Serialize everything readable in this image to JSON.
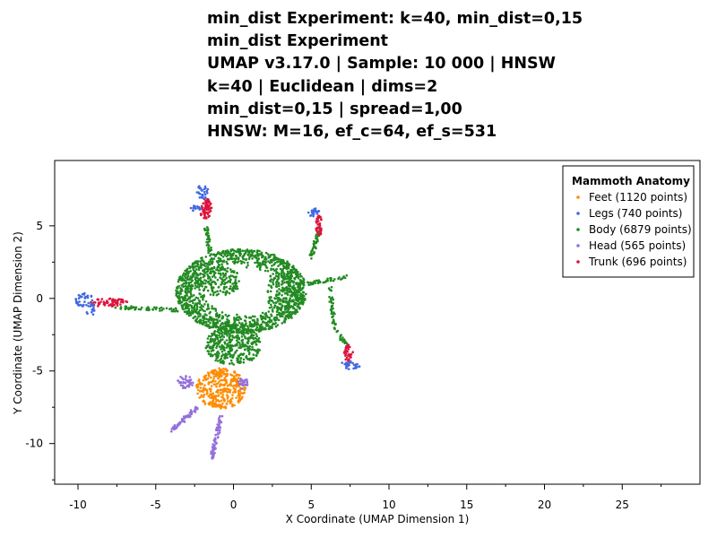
{
  "chart_data": {
    "type": "scatter",
    "title_lines": [
      "min_dist Experiment: k=40, min_dist=0,15",
      "min_dist Experiment",
      "UMAP v3.17.0 | Sample: 10 000 | HNSW",
      "k=40 | Euclidean | dims=2",
      "min_dist=0,15 | spread=1,00",
      "HNSW: M=16, ef_c=64, ef_s=531"
    ],
    "xlabel": "X Coordinate (UMAP Dimension 1)",
    "ylabel": "Y Coordinate (UMAP Dimension 2)",
    "xlim": [
      -11.5,
      30
    ],
    "ylim": [
      -12.8,
      9.5
    ],
    "xticks": [
      {
        "value": -10,
        "label": "-10"
      },
      {
        "value": -5,
        "label": "-5"
      },
      {
        "value": 0,
        "label": "0"
      },
      {
        "value": 5,
        "label": "5"
      },
      {
        "value": 10,
        "label": "10"
      },
      {
        "value": 15,
        "label": "15"
      },
      {
        "value": 20,
        "label": "20"
      },
      {
        "value": 25,
        "label": "25"
      }
    ],
    "yticks": [
      {
        "value": 5,
        "label": "5"
      },
      {
        "value": 0,
        "label": "0"
      },
      {
        "value": -5,
        "label": "-5"
      },
      {
        "value": -10,
        "label": "-10"
      }
    ],
    "grid": false,
    "legend": {
      "title": "Mammoth Anatomy",
      "placement": "top-right",
      "entries": [
        {
          "label": "Feet (1120 points)",
          "color": "#ff8c00"
        },
        {
          "label": "Legs (740 points)",
          "color": "#4169e1"
        },
        {
          "label": "Body (6879 points)",
          "color": "#228b22"
        },
        {
          "label": "Head (565 points)",
          "color": "#9370db"
        },
        {
          "label": "Trunk (696 points)",
          "color": "#dc143c"
        }
      ]
    },
    "series": [
      {
        "name": "Feet",
        "color": "#ff8c00",
        "count": 1120,
        "clusters": [
          {
            "cx": -0.8,
            "cy": -6.2,
            "rx": 1.6,
            "ry": 1.4,
            "n": 340,
            "shape": "blob"
          }
        ]
      },
      {
        "name": "Legs",
        "color": "#4169e1",
        "count": 740,
        "clusters": [
          {
            "cx": -9.6,
            "cy": -0.1,
            "rx": 0.6,
            "ry": 0.5,
            "n": 35,
            "shape": "blob"
          },
          {
            "cx": -9.2,
            "cy": -0.8,
            "rx": 0.3,
            "ry": 0.5,
            "n": 15,
            "shape": "blob"
          },
          {
            "cx": -2.0,
            "cy": 7.3,
            "rx": 0.4,
            "ry": 0.5,
            "n": 28,
            "shape": "blob"
          },
          {
            "cx": -2.4,
            "cy": 6.2,
            "rx": 0.4,
            "ry": 0.2,
            "n": 15,
            "shape": "blob"
          },
          {
            "cx": 5.2,
            "cy": 5.9,
            "rx": 0.4,
            "ry": 0.3,
            "n": 25,
            "shape": "blob"
          },
          {
            "cx": 7.5,
            "cy": -4.6,
            "rx": 0.7,
            "ry": 0.3,
            "n": 30,
            "shape": "blob"
          }
        ]
      },
      {
        "name": "Body",
        "color": "#228b22",
        "count": 6879,
        "clusters": [
          {
            "cx": 0.5,
            "cy": 0.5,
            "rx": 4.2,
            "ry": 2.9,
            "n": 1300,
            "shape": "ring"
          },
          {
            "cx": 0.0,
            "cy": -3.2,
            "rx": 1.8,
            "ry": 1.4,
            "n": 380,
            "shape": "blob"
          },
          {
            "cx": -1.0,
            "cy": 1.2,
            "rx": 1.5,
            "ry": 1.0,
            "n": 180,
            "shape": "blob"
          },
          {
            "cx": 3.2,
            "cy": 0.5,
            "rx": 1.2,
            "ry": 1.3,
            "n": 160,
            "shape": "blob"
          }
        ],
        "strands": [
          {
            "x0": -1.8,
            "y0": 5.0,
            "x1": -1.5,
            "y1": 3.2,
            "n": 40
          },
          {
            "x0": 5.5,
            "y0": 4.6,
            "x1": 5.0,
            "y1": 2.8,
            "n": 40
          },
          {
            "x0": 4.6,
            "y0": 1.0,
            "x1": 7.5,
            "y1": 1.5,
            "n": 45
          },
          {
            "x0": 6.2,
            "y0": 0.8,
            "x1": 6.5,
            "y1": -2.0,
            "n": 35
          },
          {
            "x0": 6.5,
            "y0": -2.0,
            "x1": 7.3,
            "y1": -3.3,
            "n": 20
          },
          {
            "x0": -3.5,
            "y0": -0.8,
            "x1": -7.5,
            "y1": -0.6,
            "n": 55
          }
        ]
      },
      {
        "name": "Head",
        "color": "#9370db",
        "count": 565,
        "clusters": [
          {
            "cx": -3.1,
            "cy": -5.8,
            "rx": 0.5,
            "ry": 0.5,
            "n": 40,
            "shape": "blob"
          },
          {
            "cx": 0.6,
            "cy": -5.9,
            "rx": 0.4,
            "ry": 0.4,
            "n": 25,
            "shape": "blob"
          }
        ],
        "strands": [
          {
            "x0": -2.3,
            "y0": -7.5,
            "x1": -4.0,
            "y1": -9.1,
            "n": 60
          },
          {
            "x0": -0.8,
            "y0": -8.2,
            "x1": -1.4,
            "y1": -11.0,
            "n": 75
          }
        ]
      },
      {
        "name": "Trunk",
        "color": "#dc143c",
        "count": 696,
        "clusters": [
          {
            "cx": -1.8,
            "cy": 6.2,
            "rx": 0.4,
            "ry": 0.7,
            "n": 70,
            "shape": "blob"
          },
          {
            "cx": 5.5,
            "cy": 5.0,
            "rx": 0.2,
            "ry": 0.7,
            "n": 40,
            "shape": "blob"
          },
          {
            "cx": -8.0,
            "cy": -0.3,
            "rx": 1.2,
            "ry": 0.3,
            "n": 60,
            "shape": "blob"
          },
          {
            "cx": 7.4,
            "cy": -3.8,
            "rx": 0.3,
            "ry": 0.6,
            "n": 35,
            "shape": "blob"
          }
        ]
      }
    ]
  }
}
